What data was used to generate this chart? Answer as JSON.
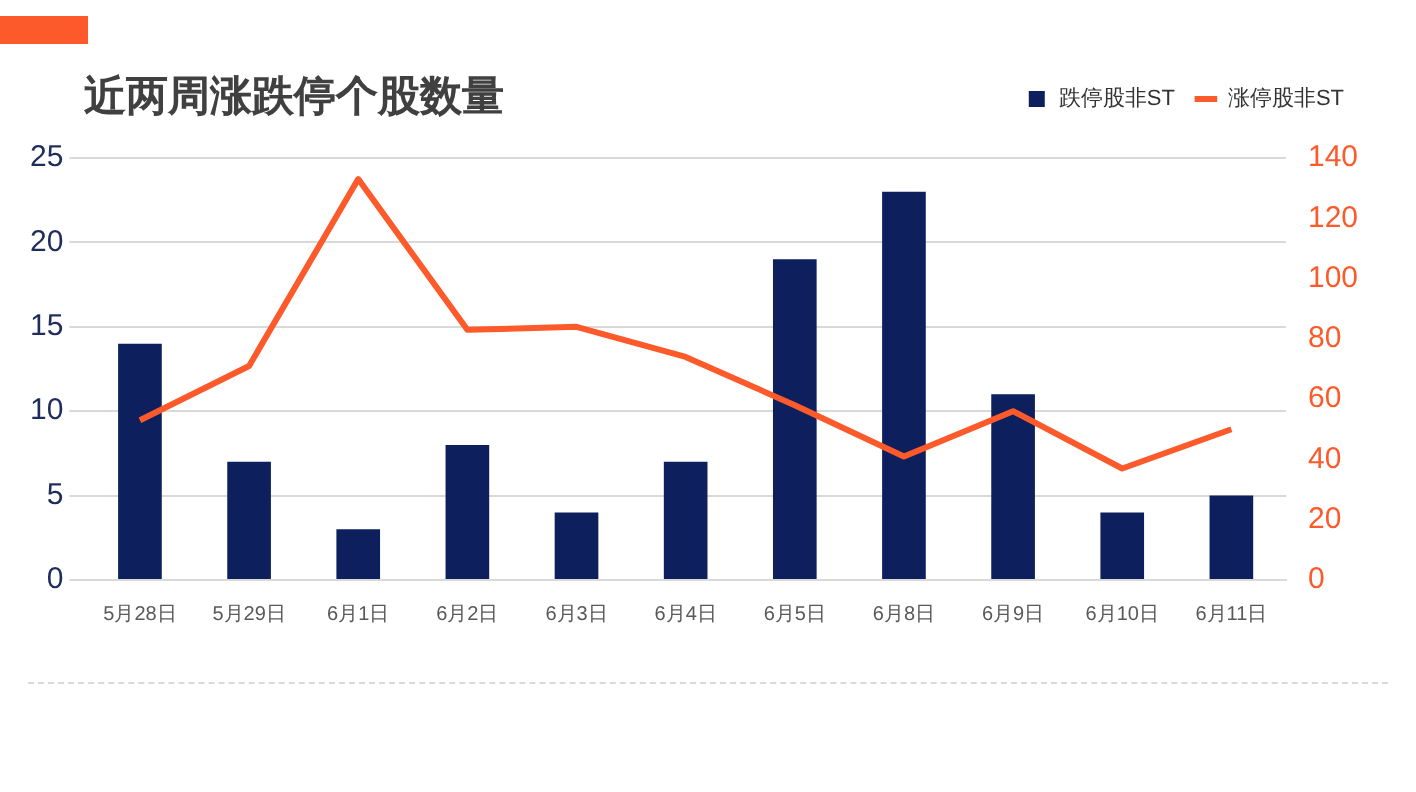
{
  "chart_data": {
    "type": "bar",
    "title": "近两周涨跌停个股数量",
    "categories": [
      "5月28日",
      "5月29日",
      "6月1日",
      "6月2日",
      "6月3日",
      "6月4日",
      "6月5日",
      "6月8日",
      "6月9日",
      "6月10日",
      "6月11日"
    ],
    "series": [
      {
        "name": "跌停股非ST",
        "color": "#0d1f5c",
        "values": [
          14,
          7,
          3,
          8,
          4,
          7,
          19,
          23,
          11,
          4,
          5
        ]
      },
      {
        "name": "涨停股非ST",
        "type": "line",
        "axis": "y2",
        "color": "#fc5a2a",
        "values": [
          53,
          71,
          133,
          83,
          84,
          74,
          58,
          41,
          56,
          37,
          50
        ]
      }
    ],
    "ylim": [
      0,
      25
    ],
    "yticks": [
      0,
      5,
      10,
      15,
      20,
      25
    ],
    "y2lim": [
      0,
      140
    ],
    "y2ticks": [
      0,
      20,
      40,
      60,
      80,
      100,
      120,
      140
    ],
    "grid": "y",
    "legend": "top right",
    "marker": "none",
    "line_style": "solid"
  }
}
